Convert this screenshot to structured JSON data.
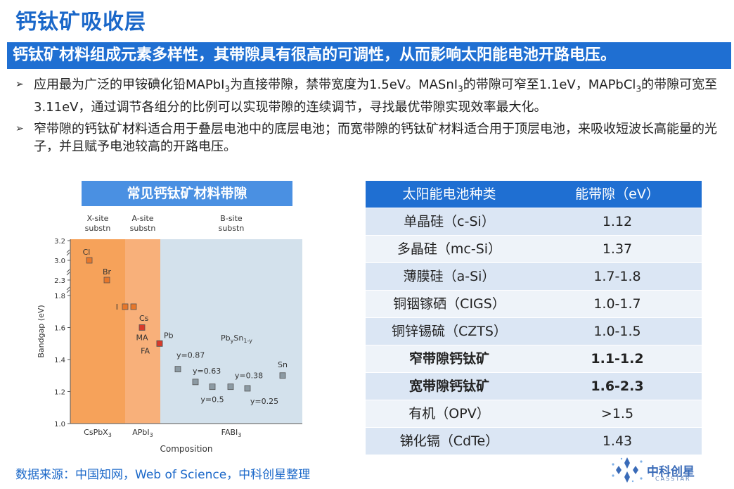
{
  "page": {
    "title": "钙钛矿吸收层",
    "banner": "钙钛矿材料组成元素多样性，其带隙具有很高的可调性，从而影响太阳能电池开路电压。",
    "bullet_marker": "➢",
    "bullets": [
      {
        "parts": [
          "应用最为广泛的甲铵碘化铅MAPbI",
          "3",
          "为直接带隙，禁带宽度为1.5eV。MASnI",
          "3",
          "的带隙可窄至1.1eV，MAPbCl",
          "3",
          "的带隙可宽至3.11eV，通过调节各组分的比例可以实现带隙的连续调节，寻找最优带隙实现效率最大化。"
        ]
      },
      {
        "text": "窄带隙的钙钛矿材料适合用于叠层电池中的底层电池；而宽带隙的钙钛矿材料适合用于顶层电池，来吸收短波长高能量的光子，并且赋予电池较高的开路电压。"
      }
    ],
    "source": "数据来源：中国知网，Web of Science，中科创星整理",
    "logo_text": "中科创星",
    "logo_sub": "CASSTAR"
  },
  "chart_header": "常见钙钛矿材料带隙",
  "chart_data": {
    "type": "scatter",
    "ylabel": "Bandgap (eV)",
    "xlabel": "Composition",
    "y_ticks": [
      "1.0",
      "1.2",
      "1.4",
      "1.6",
      "1.8",
      "2.3",
      "3.0",
      "3.2"
    ],
    "regions": [
      {
        "label_line1": "X-site",
        "label_line2": "substn",
        "bottom_label": "CsPbX",
        "bottom_sub": "3",
        "color": "#f6a25a"
      },
      {
        "label_line1": "A-site",
        "label_line2": "substn",
        "bottom_label": "APbI",
        "bottom_sub": "3",
        "color": "#f8b07a"
      },
      {
        "label_line1": "B-site",
        "label_line2": "substn",
        "bottom_label": "FABI",
        "bottom_sub": "3",
        "color": "#d3e1ec"
      }
    ],
    "points": [
      {
        "label": "Cl",
        "y": 3.0,
        "color": "#e8772a"
      },
      {
        "label": "Br",
        "y": 2.3,
        "color": "#e8772a"
      },
      {
        "label": "I",
        "y": 1.73,
        "color": "#e8772a"
      },
      {
        "label": "Cs",
        "y": 1.73,
        "color": "#e8772a"
      },
      {
        "label": "MA",
        "y": 1.6,
        "color": "#d93a2a"
      },
      {
        "label": "FA",
        "y": 1.5,
        "color": "#d93a2a"
      },
      {
        "label": "Pb",
        "y": 1.5,
        "color": "#d93a2a"
      },
      {
        "label": "y=0.87",
        "y": 1.34,
        "color": "#8c9aa3"
      },
      {
        "label": "y=0.63",
        "y": 1.26,
        "color": "#8c9aa3"
      },
      {
        "label": "y=0.5",
        "y": 1.23,
        "color": "#8c9aa3"
      },
      {
        "label": "y=0.38",
        "y": 1.23,
        "color": "#8c9aa3"
      },
      {
        "label": "y=0.25",
        "y": 1.22,
        "color": "#8c9aa3"
      },
      {
        "label": "Sn",
        "y": 1.3,
        "color": "#8c9aa3"
      }
    ],
    "series_label_b": "Pb",
    "series_label_b_sub": "y",
    "series_label_b2": "Sn",
    "series_label_b2_sub": "1-y"
  },
  "table": {
    "headers": [
      "太阳能电池种类",
      "能带隙（eV）"
    ],
    "rows": [
      {
        "type": "单晶硅（c-Si）",
        "gap": "1.12",
        "bold": false
      },
      {
        "type": "多晶硅（mc-Si）",
        "gap": "1.37",
        "bold": false
      },
      {
        "type": "薄膜硅（a-Si）",
        "gap": "1.7-1.8",
        "bold": false
      },
      {
        "type": "铜铟镓硒（CIGS）",
        "gap": "1.0-1.7",
        "bold": false
      },
      {
        "type": "铜锌锡硫（CZTS）",
        "gap": "1.0-1.5",
        "bold": false
      },
      {
        "type": "窄带隙钙钛矿",
        "gap": "1.1-1.2",
        "bold": true
      },
      {
        "type": "宽带隙钙钛矿",
        "gap": "1.6-2.3",
        "bold": true
      },
      {
        "type": "有机（OPV）",
        "gap": ">1.5",
        "bold": false
      },
      {
        "type": "锑化镉（CdTe）",
        "gap": "1.43",
        "bold": false
      }
    ]
  },
  "colors": {
    "title": "#1b68c9",
    "banner": "#1f6fd2",
    "chart_header": "#4a90e2"
  }
}
